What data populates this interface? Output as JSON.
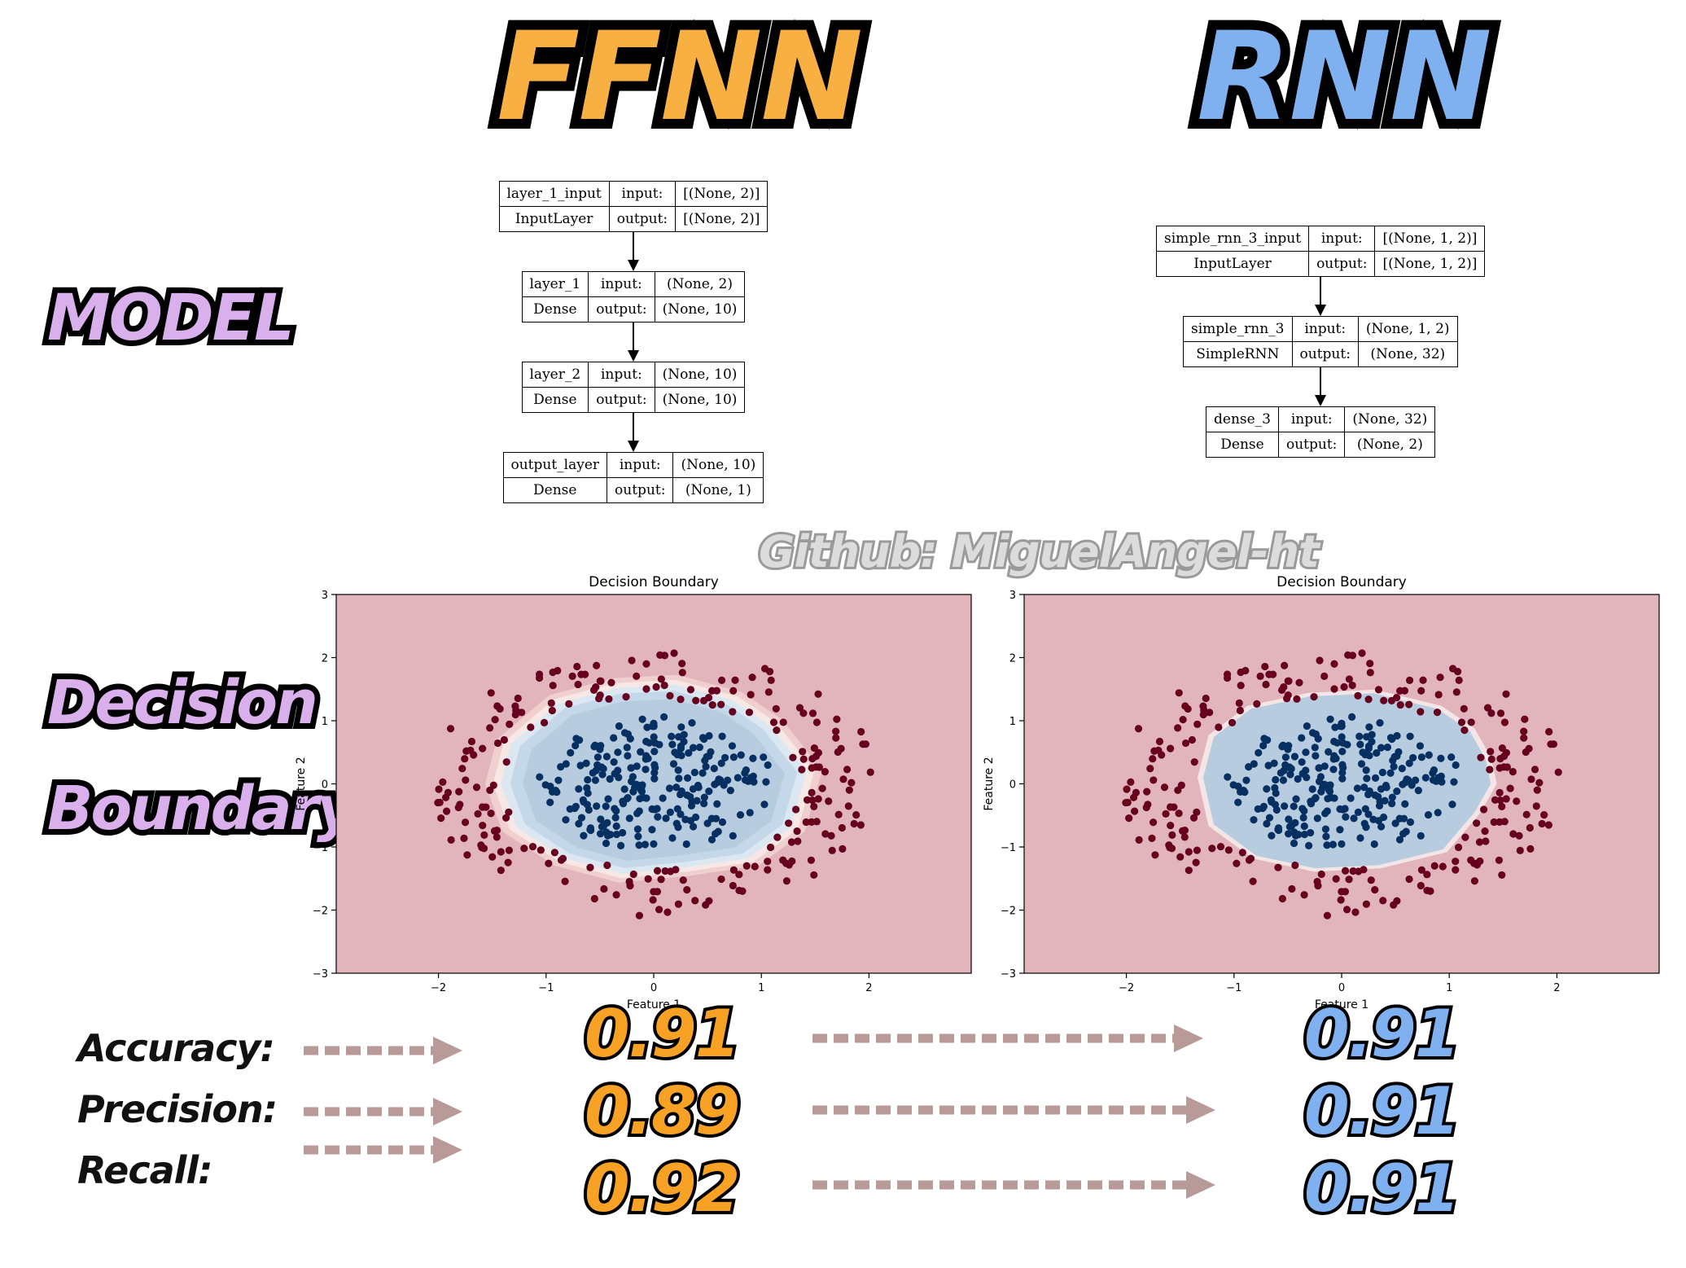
{
  "titles": {
    "ffnn": "FFNN",
    "rnn": "RNN",
    "model": "MODEL",
    "decision": "Decision",
    "boundary": "Boundary"
  },
  "watermark": "Github: MiguelAngel-ht",
  "colors": {
    "ffnn_orange": "#f9b042",
    "rnn_blue": "#7fb1f0",
    "label_purple": "#d9b0ec",
    "class0_red": "#67001f",
    "class1_blue": "#053061",
    "bg_red": "#e2b5bd",
    "region_blue": "#b8cce0",
    "arrow_pink": "#b89a98"
  },
  "ffnn_model": [
    {
      "name": "layer_1_input",
      "type": "InputLayer",
      "input_label": "input:",
      "output_label": "output:",
      "input": "[(None, 2)]",
      "output": "[(None, 2)]"
    },
    {
      "name": "layer_1",
      "type": "Dense",
      "input_label": "input:",
      "output_label": "output:",
      "input": "(None, 2)",
      "output": "(None, 10)"
    },
    {
      "name": "layer_2",
      "type": "Dense",
      "input_label": "input:",
      "output_label": "output:",
      "input": "(None, 10)",
      "output": "(None, 10)"
    },
    {
      "name": "output_layer",
      "type": "Dense",
      "input_label": "input:",
      "output_label": "output:",
      "input": "(None, 10)",
      "output": "(None, 1)"
    }
  ],
  "rnn_model": [
    {
      "name": "simple_rnn_3_input",
      "type": "InputLayer",
      "input_label": "input:",
      "output_label": "output:",
      "input": "[(None, 1, 2)]",
      "output": "[(None, 1, 2)]"
    },
    {
      "name": "simple_rnn_3",
      "type": "SimpleRNN",
      "input_label": "input:",
      "output_label": "output:",
      "input": "(None, 1, 2)",
      "output": "(None, 32)"
    },
    {
      "name": "dense_3",
      "type": "Dense",
      "input_label": "input:",
      "output_label": "output:",
      "input": "(None, 32)",
      "output": "(None, 2)"
    }
  ],
  "chart_data": [
    {
      "type": "scatter",
      "title": "Decision Boundary",
      "xlabel": "Feature 1",
      "ylabel": "Feature 2",
      "xlim": [
        -2.95,
        2.95
      ],
      "ylim": [
        -3,
        3
      ],
      "xticks": [
        "−2",
        "−1",
        "0",
        "1",
        "2"
      ],
      "yticks": [
        "−3",
        "−2",
        "−1",
        "0",
        "1",
        "2",
        "3"
      ],
      "boundary": [
        [
          -1.35,
          0.65
        ],
        [
          -0.9,
          1.3
        ],
        [
          -0.35,
          1.55
        ],
        [
          0.2,
          1.6
        ],
        [
          0.75,
          1.35
        ],
        [
          1.1,
          0.95
        ],
        [
          1.45,
          0.2
        ],
        [
          1.3,
          -0.7
        ],
        [
          0.9,
          -1.2
        ],
        [
          0.3,
          -1.35
        ],
        [
          -0.3,
          -1.45
        ],
        [
          -0.85,
          -1.2
        ],
        [
          -1.3,
          -0.7
        ],
        [
          -1.45,
          0.0
        ]
      ],
      "boundary_style": "smooth"
    },
    {
      "type": "scatter",
      "title": "Decision Boundary",
      "xlabel": "Feature 1",
      "ylabel": "Feature 2",
      "xlim": [
        -2.95,
        2.95
      ],
      "ylim": [
        -3,
        3
      ],
      "xticks": [
        "−2",
        "−1",
        "0",
        "1",
        "2"
      ],
      "yticks": [
        "−3",
        "−2",
        "−1",
        "0",
        "1",
        "2",
        "3"
      ],
      "boundary": [
        [
          -1.2,
          0.75
        ],
        [
          -0.85,
          1.2
        ],
        [
          -0.3,
          1.4
        ],
        [
          0.3,
          1.45
        ],
        [
          0.9,
          1.2
        ],
        [
          1.2,
          0.85
        ],
        [
          1.35,
          0.4
        ],
        [
          1.4,
          0.0
        ],
        [
          1.25,
          -0.45
        ],
        [
          0.95,
          -1.05
        ],
        [
          0.35,
          -1.3
        ],
        [
          -0.25,
          -1.35
        ],
        [
          -0.8,
          -1.15
        ],
        [
          -1.2,
          -0.65
        ],
        [
          -1.3,
          0.1
        ]
      ],
      "boundary_style": "blocky"
    }
  ],
  "metrics": [
    {
      "label": "Accuracy:",
      "ffnn": "0.91",
      "rnn": "0.91"
    },
    {
      "label": "Precision:",
      "ffnn": "0.89",
      "rnn": "0.91"
    },
    {
      "label": "Recall:",
      "ffnn": "0.92",
      "rnn": "0.91"
    }
  ]
}
